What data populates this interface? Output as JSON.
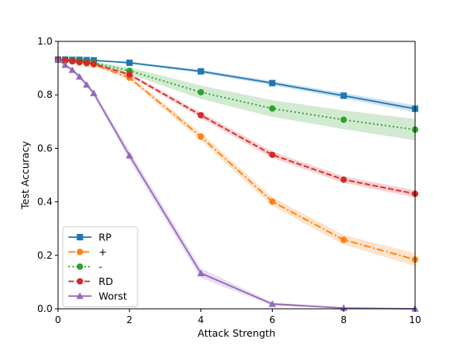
{
  "chart_data": {
    "type": "line",
    "title": "",
    "xlabel": "Attack Strength",
    "ylabel": "Test Accuracy",
    "xlim": [
      0,
      10
    ],
    "ylim": [
      0.0,
      1.0
    ],
    "xticks": [
      0,
      2,
      4,
      6,
      8,
      10
    ],
    "yticks": [
      0.0,
      0.2,
      0.4,
      0.6,
      0.8,
      1.0
    ],
    "grid": false,
    "legend_position": "lower-left",
    "series": [
      {
        "name": "RP",
        "color": "#1f77b4",
        "line_style": "solid",
        "marker": "square",
        "x": [
          0,
          0.2,
          0.4,
          0.6,
          0.8,
          1,
          2,
          4,
          6,
          8,
          10
        ],
        "y": [
          0.932,
          0.932,
          0.931,
          0.931,
          0.93,
          0.929,
          0.92,
          0.888,
          0.844,
          0.797,
          0.748
        ],
        "band_lower": [
          0.93,
          0.93,
          0.929,
          0.929,
          0.928,
          0.927,
          0.916,
          0.882,
          0.836,
          0.787,
          0.735
        ],
        "band_upper": [
          0.934,
          0.934,
          0.933,
          0.933,
          0.932,
          0.931,
          0.924,
          0.894,
          0.852,
          0.807,
          0.761
        ]
      },
      {
        "name": "+",
        "color": "#ff7f0e",
        "line_style": "dashdot",
        "marker": "circle",
        "x": [
          0,
          0.2,
          0.4,
          0.6,
          0.8,
          1,
          2,
          4,
          6,
          8,
          10
        ],
        "y": [
          0.932,
          0.928,
          0.925,
          0.921,
          0.917,
          0.913,
          0.864,
          0.644,
          0.401,
          0.258,
          0.184
        ],
        "band_lower": [
          0.93,
          0.926,
          0.922,
          0.918,
          0.914,
          0.909,
          0.856,
          0.63,
          0.385,
          0.24,
          0.16
        ],
        "band_upper": [
          0.934,
          0.93,
          0.928,
          0.924,
          0.92,
          0.917,
          0.872,
          0.658,
          0.417,
          0.276,
          0.208
        ]
      },
      {
        "name": "-",
        "color": "#2ca02c",
        "line_style": "dotted",
        "marker": "circle",
        "x": [
          0,
          0.2,
          0.4,
          0.6,
          0.8,
          1,
          2,
          4,
          6,
          8,
          10
        ],
        "y": [
          0.932,
          0.93,
          0.928,
          0.926,
          0.923,
          0.92,
          0.89,
          0.81,
          0.749,
          0.707,
          0.67
        ],
        "band_lower": [
          0.93,
          0.928,
          0.925,
          0.922,
          0.919,
          0.915,
          0.878,
          0.785,
          0.718,
          0.672,
          0.63
        ],
        "band_upper": [
          0.934,
          0.932,
          0.931,
          0.93,
          0.927,
          0.925,
          0.902,
          0.835,
          0.78,
          0.742,
          0.71
        ]
      },
      {
        "name": "RD",
        "color": "#d62728",
        "line_style": "dashed",
        "marker": "circle",
        "x": [
          0,
          0.2,
          0.4,
          0.6,
          0.8,
          1,
          2,
          4,
          6,
          8,
          10
        ],
        "y": [
          0.932,
          0.929,
          0.926,
          0.923,
          0.92,
          0.916,
          0.876,
          0.724,
          0.576,
          0.483,
          0.43
        ],
        "band_lower": [
          0.93,
          0.927,
          0.923,
          0.92,
          0.917,
          0.912,
          0.87,
          0.714,
          0.564,
          0.471,
          0.417
        ],
        "band_upper": [
          0.934,
          0.931,
          0.929,
          0.926,
          0.923,
          0.92,
          0.882,
          0.734,
          0.588,
          0.495,
          0.443
        ]
      },
      {
        "name": "Worst",
        "color": "#9467bd",
        "line_style": "solid",
        "marker": "triangle",
        "x": [
          0,
          0.2,
          0.4,
          0.6,
          0.8,
          1,
          2,
          4,
          6,
          8,
          10
        ],
        "y": [
          0.932,
          0.912,
          0.893,
          0.868,
          0.838,
          0.806,
          0.573,
          0.133,
          0.018,
          0.003,
          0.0
        ],
        "band_lower": [
          0.93,
          0.908,
          0.887,
          0.861,
          0.83,
          0.796,
          0.555,
          0.115,
          0.012,
          0.001,
          0.0
        ],
        "band_upper": [
          0.934,
          0.916,
          0.899,
          0.875,
          0.846,
          0.816,
          0.591,
          0.151,
          0.024,
          0.005,
          0.001
        ]
      }
    ]
  }
}
